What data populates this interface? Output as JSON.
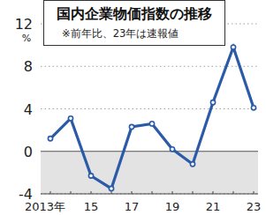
{
  "chart_data": {
    "type": "line",
    "title": "国内企業物価指数の推移",
    "subtitle": "※前年比、23年は速報値",
    "y_label": "%",
    "categories": [
      "2013年",
      null,
      "15",
      null,
      "17",
      null,
      "19",
      null,
      "21",
      null,
      "23"
    ],
    "values": [
      1.2,
      3.1,
      -2.3,
      -3.5,
      2.3,
      2.6,
      0.2,
      -1.2,
      4.6,
      9.8,
      4.1
    ],
    "color": "#2b5ba8",
    "marker": "circle",
    "ylim": [
      -4,
      12
    ],
    "yticks": [
      -4,
      0,
      4,
      8,
      12
    ],
    "grid": true
  }
}
